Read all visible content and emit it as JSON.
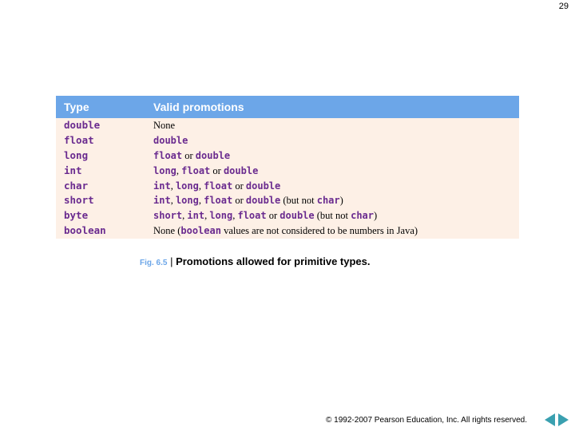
{
  "page_number": "29",
  "header": {
    "col1": "Type",
    "col2": "Valid promotions"
  },
  "rows": [
    {
      "type": "double",
      "html": "None"
    },
    {
      "type": "float",
      "html": "<span class='kw'>double</span>"
    },
    {
      "type": "long",
      "html": "<span class='kw'>float</span> or <span class='kw'>double</span>"
    },
    {
      "type": "int",
      "html": "<span class='kw'>long</span>, <span class='kw'>float</span> or <span class='kw'>double</span>"
    },
    {
      "type": "char",
      "html": "<span class='kw'>int</span>, <span class='kw'>long</span>, <span class='kw'>float</span> or <span class='kw'>double</span>"
    },
    {
      "type": "short",
      "html": "<span class='kw'>int</span>, <span class='kw'>long</span>, <span class='kw'>float</span> or <span class='kw'>double</span> (but not <span class='kw'>char</span>)"
    },
    {
      "type": "byte",
      "html": "<span class='kw'>short</span>, <span class='kw'>int</span>, <span class='kw'>long</span>, <span class='kw'>float</span> or <span class='kw'>double</span> (but not <span class='kw'>char</span>)"
    },
    {
      "type": "boolean",
      "html": "None (<span class='kw'>boolean</span> values are not considered to be numbers in Java)"
    }
  ],
  "caption": {
    "fig": "Fig. 6.5",
    "sep": " | ",
    "text": "Promotions allowed for primitive types."
  },
  "copyright": "© 1992-2007 Pearson Education, Inc.  All rights reserved.",
  "colors": {
    "header_bg": "#6ca6e8",
    "body_bg": "#fdf0e6",
    "keyword": "#6a2b8f",
    "nav": "#3aa0b0"
  }
}
